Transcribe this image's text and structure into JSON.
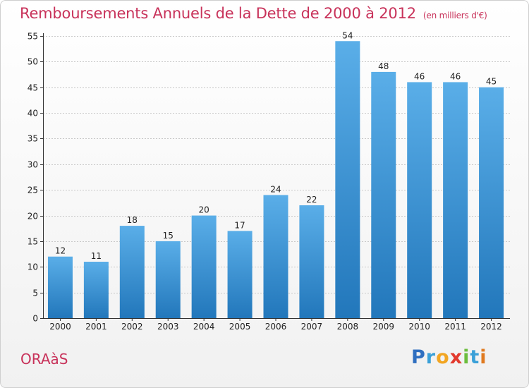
{
  "header": {
    "title": "Remboursements Annuels de la Dette de 2000 à 2012",
    "subtitle": "(en milliers d'€)"
  },
  "footer": {
    "commune": "ORAàS",
    "logo_letters": [
      {
        "ch": "P",
        "color": "#2f6fc0"
      },
      {
        "ch": "r",
        "color": "#3aa0d8"
      },
      {
        "ch": "o",
        "color": "#f2a623"
      },
      {
        "ch": "x",
        "color": "#e23a2e"
      },
      {
        "ch": "i",
        "color": "#6cbd3d"
      },
      {
        "ch": "t",
        "color": "#3aa0d8"
      },
      {
        "ch": "i",
        "color": "#e07a20"
      }
    ]
  },
  "colors": {
    "bar_light": "#5aaee8",
    "bar_dark": "#2277bb",
    "title": "#c8325a",
    "grid": "#c8c8c8"
  },
  "chart_data": {
    "type": "bar",
    "categories": [
      "2000",
      "2001",
      "2002",
      "2003",
      "2004",
      "2005",
      "2006",
      "2007",
      "2008",
      "2009",
      "2010",
      "2011",
      "2012"
    ],
    "values": [
      12,
      11,
      18,
      15,
      20,
      17,
      24,
      22,
      54,
      48,
      46,
      46,
      45
    ],
    "title": "Remboursements Annuels de la Dette de 2000 à 2012",
    "xlabel": "",
    "ylabel": "",
    "ylim": [
      0,
      55
    ],
    "yticks": [
      0,
      5,
      10,
      15,
      20,
      25,
      30,
      35,
      40,
      45,
      50,
      55
    ],
    "grid": true,
    "data_labels": true
  }
}
